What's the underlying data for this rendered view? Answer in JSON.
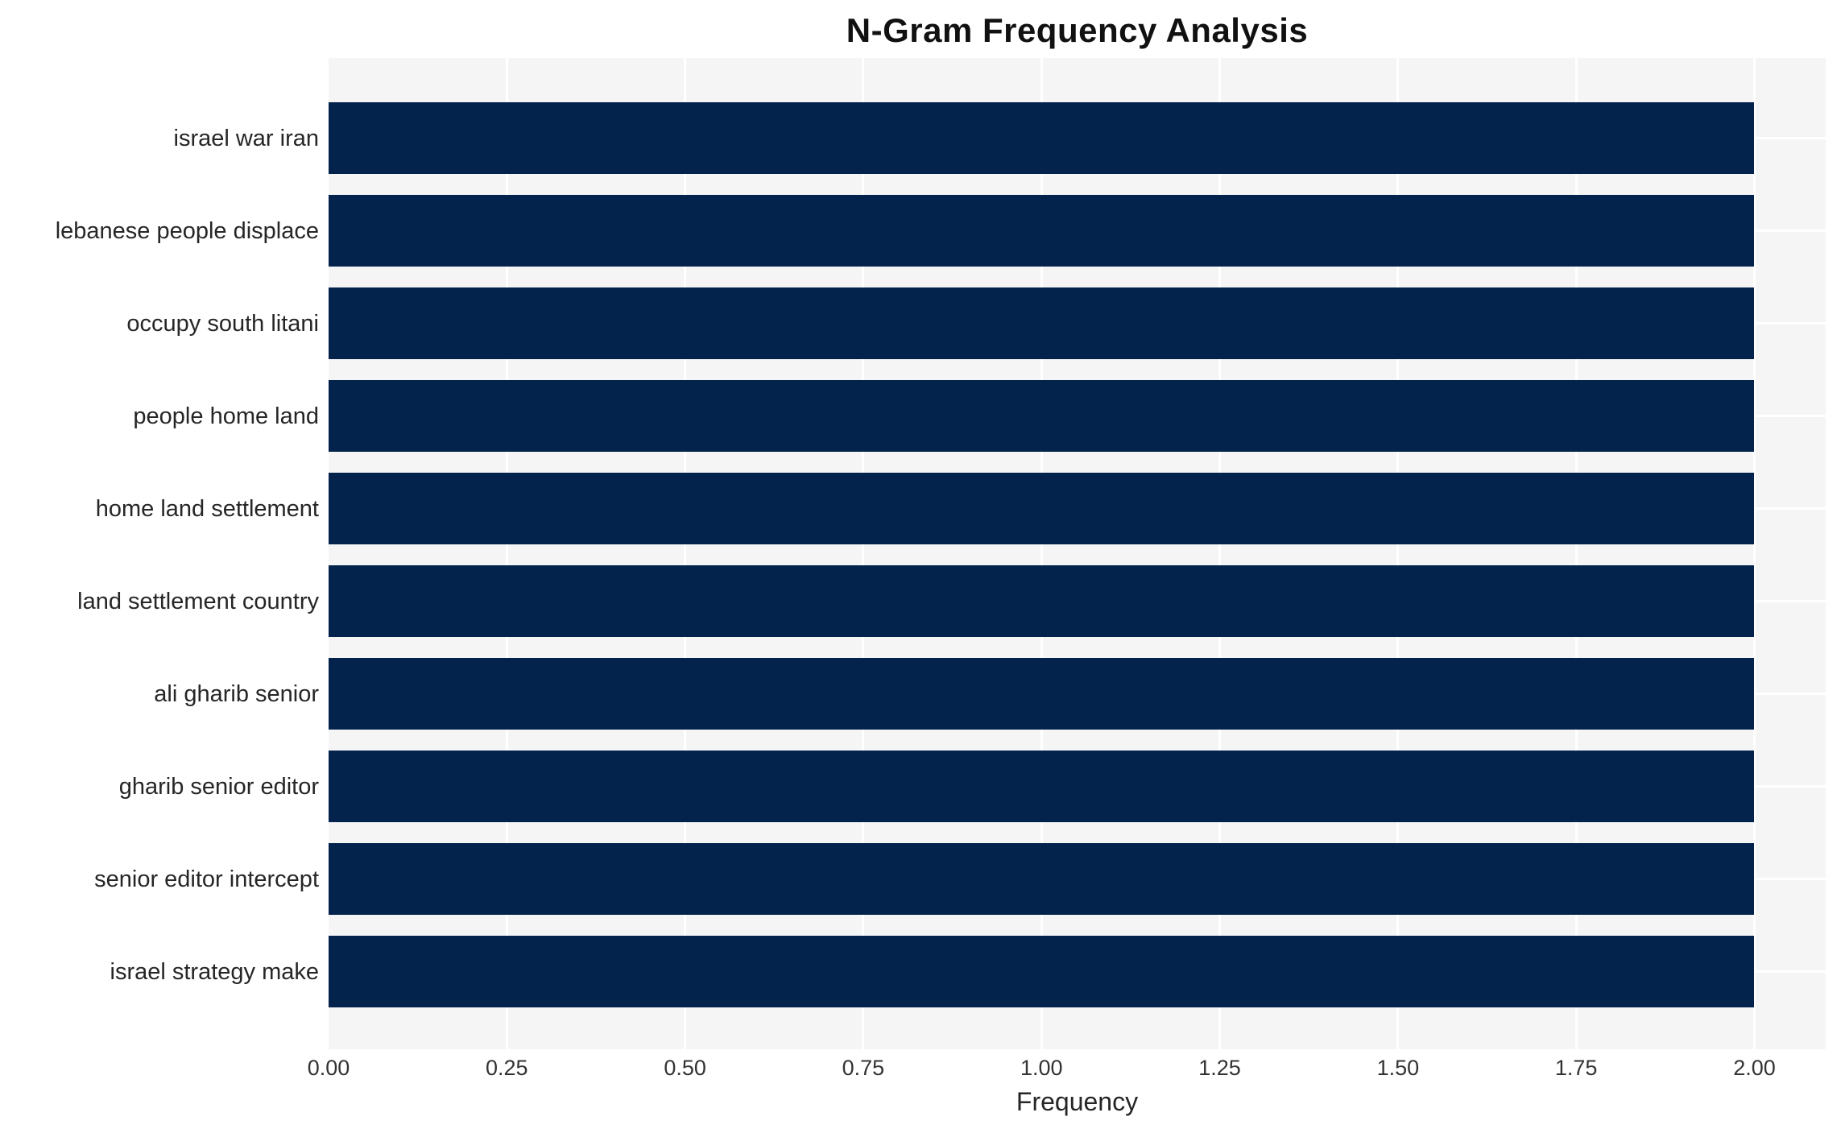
{
  "chart_data": {
    "type": "bar",
    "orientation": "horizontal",
    "title": "N-Gram Frequency Analysis",
    "xlabel": "Frequency",
    "ylabel": "",
    "categories": [
      "israel war iran",
      "lebanese people displace",
      "occupy south litani",
      "people home land",
      "home land settlement",
      "land settlement country",
      "ali gharib senior",
      "gharib senior editor",
      "senior editor intercept",
      "israel strategy make"
    ],
    "values": [
      2.0,
      2.0,
      2.0,
      2.0,
      2.0,
      2.0,
      2.0,
      2.0,
      2.0,
      2.0
    ],
    "xlim": [
      0,
      2.1
    ],
    "xticks": [
      "0.00",
      "0.25",
      "0.50",
      "0.75",
      "1.00",
      "1.25",
      "1.50",
      "1.75",
      "2.00"
    ],
    "grid": true,
    "legend": "none",
    "colors": {
      "bar": "#04234C",
      "plot_background": "#f5f5f6",
      "gridline": "#ffffff",
      "title_text": "#111111",
      "axis_text": "#262626"
    }
  }
}
